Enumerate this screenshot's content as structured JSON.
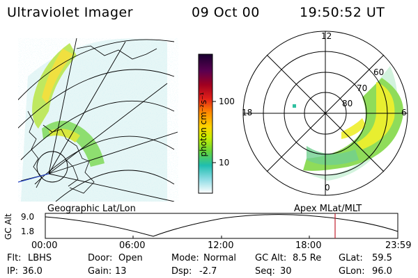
{
  "header": {
    "title": "Ultraviolet Imager",
    "date": "09 Oct 00",
    "time": "19:50:52 UT"
  },
  "colorbar": {
    "unit_label": "photon cm⁻²s⁻¹",
    "ticks": [
      "100",
      "10"
    ],
    "scale": "log",
    "colors": [
      "#1a0030",
      "#5a0050",
      "#a00020",
      "#e0201a",
      "#ff8a00",
      "#ffd200",
      "#c8ee00",
      "#64d33c",
      "#1fbeb0",
      "#8edce4",
      "#d0eef0",
      "#ffffff"
    ]
  },
  "left_map": {
    "label": "Geographic Lat/Lon",
    "emission_color": "#9be000"
  },
  "polar_plot": {
    "label": "Apex MLat/MLT",
    "hour_labels": {
      "top": "12",
      "left": "18",
      "right": "6",
      "bottom": "0"
    },
    "lat_labels": [
      "60",
      "70",
      "80"
    ]
  },
  "altitude_plot": {
    "ylabel": "GC Alt",
    "yticks": [
      "9.0",
      "1.8"
    ],
    "xticks": [
      "00:00",
      "06:00",
      "12:00",
      "18:00",
      "23:59"
    ],
    "marker_color": "#c02030"
  },
  "footer": {
    "row1": [
      {
        "label": "Flt:",
        "value": "LBHS"
      },
      {
        "label": "Door:",
        "value": "Open"
      },
      {
        "label": "Mode:",
        "value": "Normal"
      },
      {
        "label": "GC Alt:",
        "value": "8.5 Re"
      },
      {
        "label": "GLat:",
        "value": "59.5"
      }
    ],
    "row2": [
      {
        "label": "IP:",
        "value": "36.0"
      },
      {
        "label": "Gain:",
        "value": "13"
      },
      {
        "label": "Dsp:",
        "value": "-2.7"
      },
      {
        "label": "Seq:",
        "value": "30"
      },
      {
        "label": "GLon:",
        "value": "96.0"
      }
    ]
  }
}
